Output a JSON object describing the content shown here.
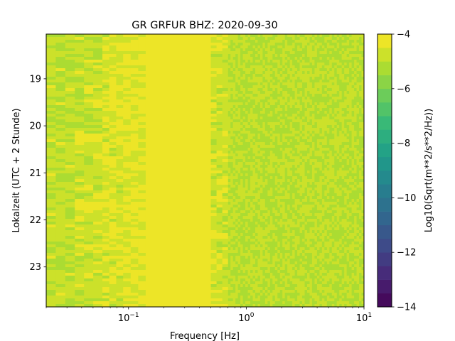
{
  "chart_data": {
    "type": "heatmap",
    "title": "GR GRFUR  BHZ: 2020-09-30",
    "xlabel": "Frequency [Hz]",
    "ylabel": "Lokalzeit (UTC + 2 Stunde)",
    "x_scale": "log",
    "xlim": [
      0.02,
      10
    ],
    "x_major_ticks": [
      {
        "value": 0.1,
        "base": "10",
        "exp": "−1"
      },
      {
        "value": 1,
        "base": "10",
        "exp": "0"
      },
      {
        "value": 10,
        "base": "10",
        "exp": "1"
      }
    ],
    "ylim": [
      18.05,
      23.85
    ],
    "y_inverted": true,
    "y_ticks": [
      19,
      20,
      21,
      22,
      23
    ],
    "colorbar": {
      "label": "Log10(Sqrt(m**2/s**2/Hz))",
      "range": [
        -14,
        -4
      ],
      "ticks": [
        "−4",
        "−6",
        "−8",
        "−10",
        "−12",
        "−14"
      ],
      "tick_values": [
        -4,
        -6,
        -8,
        -10,
        -12,
        -14
      ],
      "colormap": "viridis",
      "levels": 20
    },
    "bands": [
      {
        "f_min": 0.02,
        "f_max": 0.035,
        "value": -4.9
      },
      {
        "f_min": 0.035,
        "f_max": 0.06,
        "value": -4.8
      },
      {
        "f_min": 0.06,
        "f_max": 0.09,
        "value": -4.6
      },
      {
        "f_min": 0.09,
        "f_max": 0.14,
        "value": -4.4
      },
      {
        "f_min": 0.14,
        "f_max": 0.5,
        "value": -4.0
      },
      {
        "f_min": 0.5,
        "f_max": 0.7,
        "value": -4.7
      },
      {
        "f_min": 0.7,
        "f_max": 10,
        "value": -5.0
      }
    ]
  }
}
